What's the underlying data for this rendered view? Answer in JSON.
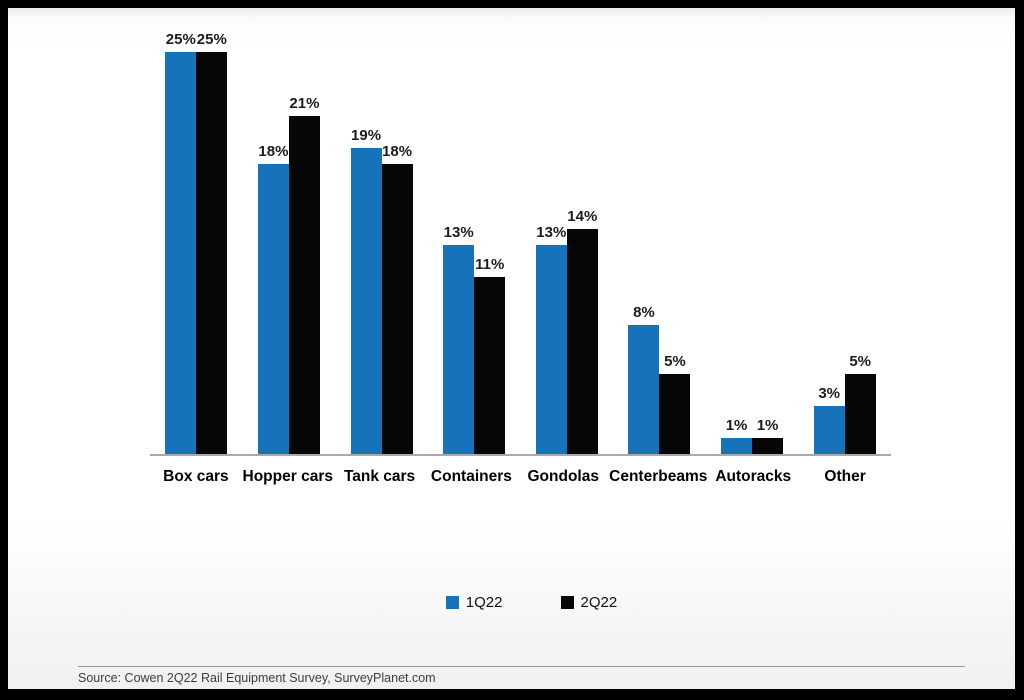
{
  "chart_data": {
    "type": "bar",
    "categories": [
      "Box cars",
      "Hopper cars",
      "Tank cars",
      "Containers",
      "Gondolas",
      "Centerbeams",
      "Autoracks",
      "Other"
    ],
    "series": [
      {
        "name": "1Q22",
        "color": "#1673ba",
        "values": [
          25,
          18,
          19,
          13,
          13,
          8,
          1,
          3
        ],
        "labels": [
          "25%",
          "18%",
          "19%",
          "13%",
          "13%",
          "8%",
          "1%",
          "3%"
        ]
      },
      {
        "name": "2Q22",
        "color": "#060606",
        "values": [
          25,
          21,
          18,
          11,
          14,
          5,
          1,
          5
        ],
        "labels": [
          "25%",
          "21%",
          "18%",
          "11%",
          "14%",
          "5%",
          "1%",
          "5%"
        ]
      }
    ],
    "title": "",
    "xlabel": "",
    "ylabel": "",
    "ylim": [
      0,
      26
    ],
    "grid": false,
    "value_suffix": "%",
    "legend_position": "bottom",
    "axis_line_color": "#a9a9a9"
  },
  "source": {
    "text": "Source: Cowen 2Q22 Rail Equipment Survey, SurveyPlanet.com"
  }
}
